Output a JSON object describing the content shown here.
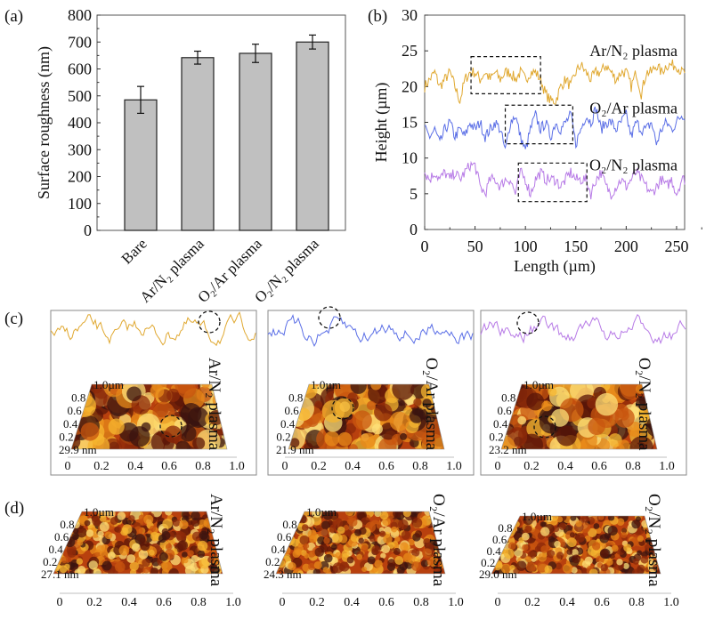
{
  "panel_labels": {
    "a": "(a)",
    "b": "(b)",
    "c": "(c)",
    "d": "(d)"
  },
  "colors": {
    "bar": "#c0c0c0",
    "ar_n2": "#e0a830",
    "o2_ar": "#5a6ee6",
    "o2_n2": "#b77ae6"
  },
  "chart_data": [
    {
      "type": "bar",
      "panel": "(a)",
      "categories": [
        "Bare",
        "Ar/N₂ plasma",
        "O₂/Ar plasma",
        "O₂/N₂ plasma"
      ],
      "values": [
        485,
        642,
        658,
        700
      ],
      "errors": [
        50,
        24,
        34,
        26
      ],
      "ylabel": "Surface roughness (nm)",
      "xlabel": "",
      "ylim": [
        0,
        800
      ],
      "yticks": [
        0,
        100,
        200,
        300,
        400,
        500,
        600,
        700,
        800
      ],
      "grid": false
    },
    {
      "type": "line",
      "panel": "(b)",
      "xlabel": "Length (µm)",
      "ylabel": "Height (µm)",
      "xlim": [
        0,
        258
      ],
      "ylim": [
        0,
        30
      ],
      "xticks": [
        0,
        50,
        100,
        150,
        200,
        250
      ],
      "yticks": [
        0,
        5,
        10,
        15,
        20,
        25,
        30
      ],
      "grid": false,
      "x_step": 5,
      "series": [
        {
          "name": "Ar/N₂ plasma",
          "color": "#e0a830",
          "values": [
            20,
            21,
            22,
            20,
            21,
            22,
            20,
            18,
            21,
            22,
            22,
            21,
            22,
            21,
            22,
            21,
            22,
            22,
            21,
            22,
            21,
            22,
            22,
            21,
            19,
            18,
            18,
            20,
            21,
            20,
            22,
            23,
            22,
            21,
            22,
            22,
            23,
            22,
            21,
            22,
            22,
            20,
            22,
            19,
            22,
            22,
            23,
            22,
            23,
            23,
            23,
            22
          ],
          "highlight": {
            "x": [
              46,
              115
            ],
            "y": [
              19,
              24.2
            ]
          }
        },
        {
          "name": "O₂/Ar plasma",
          "color": "#5a6ee6",
          "values": [
            14,
            13,
            14,
            12,
            14,
            15,
            13,
            14,
            13,
            15,
            14,
            15,
            13,
            14,
            15,
            14,
            11,
            15,
            16,
            13,
            11,
            14,
            16,
            14,
            15,
            13,
            15,
            14,
            15,
            16,
            12,
            14,
            16,
            15,
            17,
            14,
            15,
            15,
            14,
            15,
            16,
            13,
            15,
            14,
            14,
            15,
            12,
            14,
            15,
            14,
            15,
            16
          ],
          "highlight": {
            "x": [
              80,
              147
            ],
            "y": [
              12,
              17.4
            ]
          }
        },
        {
          "name": "O₂/N₂ plasma",
          "color": "#b77ae6",
          "values": [
            8,
            7,
            8,
            7,
            8,
            7,
            8,
            7,
            8,
            9,
            9,
            6,
            5,
            7,
            7,
            6,
            7,
            7,
            5,
            8,
            7,
            5,
            7,
            8,
            7,
            7,
            7,
            6,
            7,
            8,
            7,
            7,
            7,
            5,
            7,
            8,
            6,
            5,
            6,
            7,
            6,
            7,
            8,
            7,
            6,
            5,
            6,
            7,
            6,
            7,
            5,
            7
          ],
          "highlight": {
            "x": [
              93,
              161
            ],
            "y": [
              3.9,
              9.3
            ]
          }
        }
      ]
    }
  ],
  "afm": {
    "y_ticks": [
      "1.0µm",
      "0.8",
      "0.6",
      "0.4",
      "0.2"
    ],
    "x_ticks": [
      "0",
      "0.2",
      "0.4",
      "0.6",
      "0.8",
      "1.0"
    ],
    "c": [
      {
        "label": "Ar/N₂ plasma",
        "z": "29.9 nm"
      },
      {
        "label": "O₂/Ar plasma",
        "z": "21.9 nm"
      },
      {
        "label": "O₂/N₂ plasma",
        "z": "23.2 nm"
      }
    ],
    "d": [
      {
        "label": "Ar/N₂ plasma",
        "z": "27.1 nm"
      },
      {
        "label": "O₂/Ar plasma",
        "z": "24.3 nm"
      },
      {
        "label": "O₂/N₂ plasma",
        "z": "29.0 nm"
      }
    ]
  }
}
